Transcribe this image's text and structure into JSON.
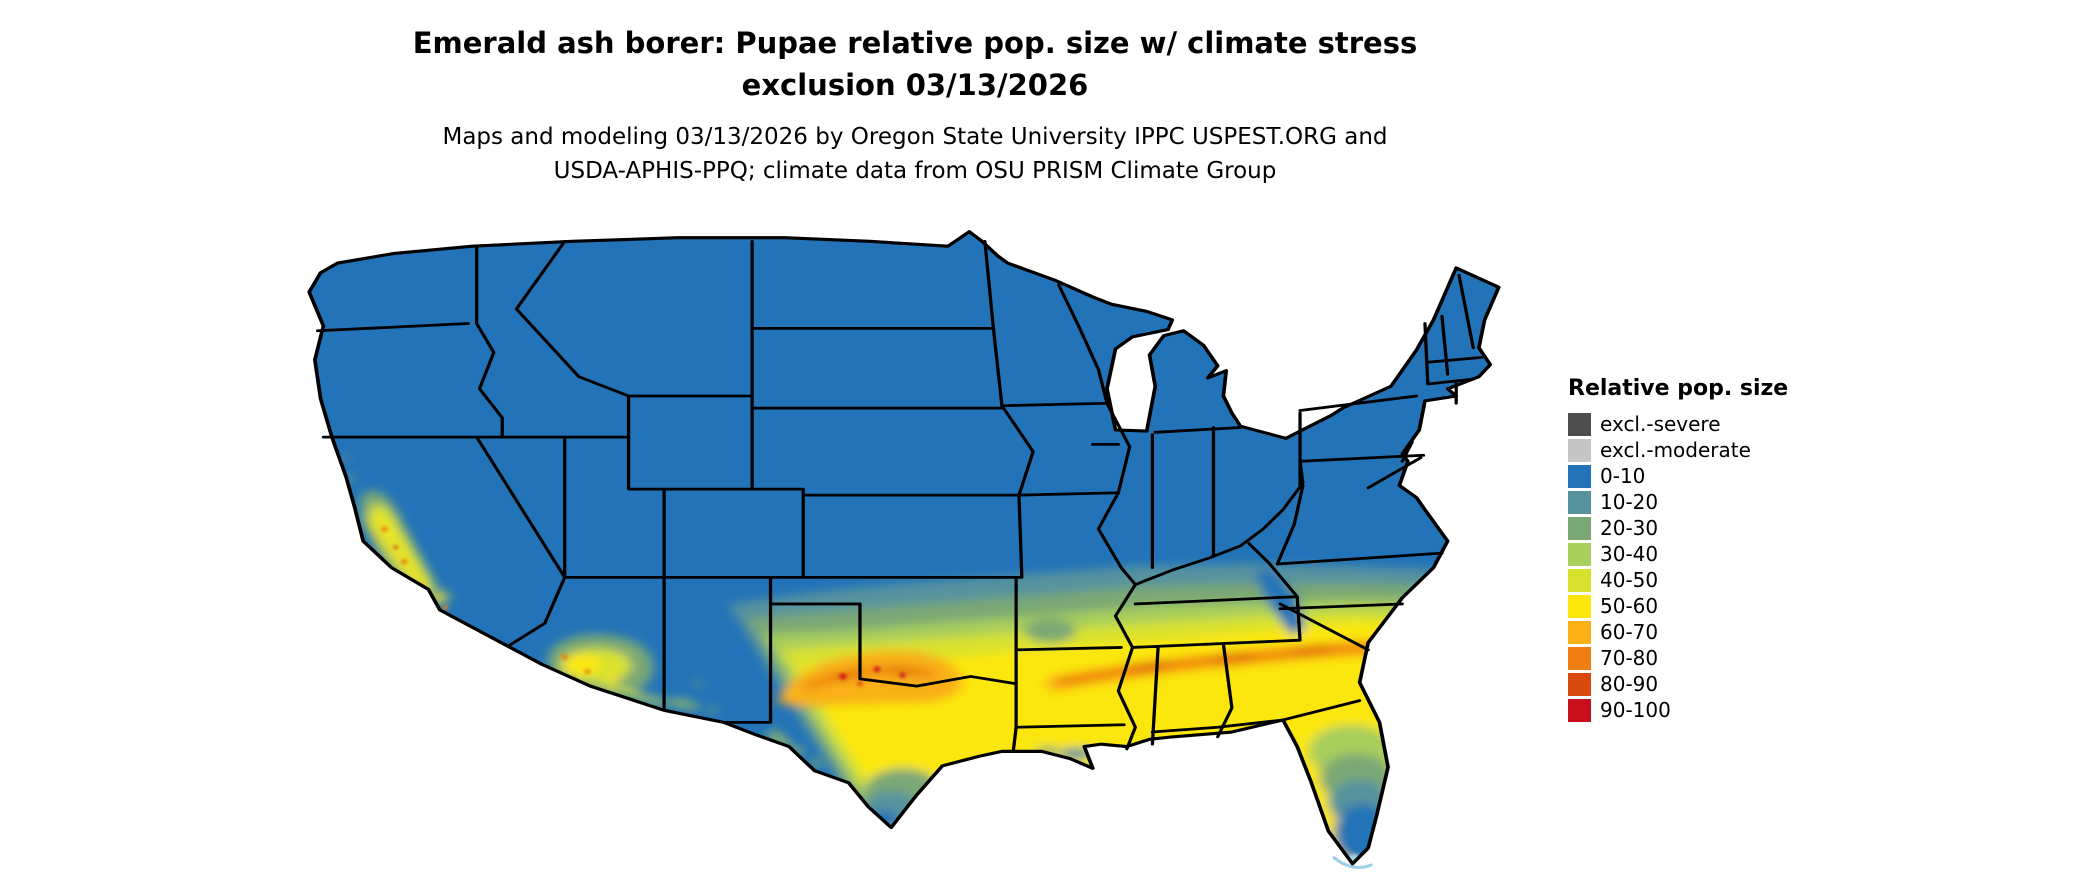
{
  "header": {
    "title_line1": "Emerald ash borer: Pupae relative pop. size w/ climate stress",
    "title_line2": "exclusion 03/13/2026",
    "subtitle_line1": "Maps and modeling 03/13/2026 by Oregon State University IPPC USPEST.ORG and",
    "subtitle_line2": "USDA-APHIS-PPQ; climate data from OSU PRISM Climate Group"
  },
  "legend": {
    "title": "Relative pop. size",
    "items": [
      {
        "label": "excl.-severe",
        "color": "#4d4d4d"
      },
      {
        "label": "excl.-moderate",
        "color": "#c6c6c6"
      },
      {
        "label": "0-10",
        "color": "#2273b8"
      },
      {
        "label": "10-20",
        "color": "#57939f"
      },
      {
        "label": "20-30",
        "color": "#7aa874"
      },
      {
        "label": "30-40",
        "color": "#a8ce5b"
      },
      {
        "label": "40-50",
        "color": "#d9e22f"
      },
      {
        "label": "50-60",
        "color": "#fbe70c"
      },
      {
        "label": "60-70",
        "color": "#f9b014"
      },
      {
        "label": "70-80",
        "color": "#ee7e11"
      },
      {
        "label": "80-90",
        "color": "#d8490e"
      },
      {
        "label": "90-100",
        "color": "#c8101c"
      }
    ]
  },
  "map": {
    "region": "Conterminous United States",
    "water_fringe_color": "#9fd0ea",
    "border_color": "#000000",
    "background_color": "#ffffff"
  }
}
